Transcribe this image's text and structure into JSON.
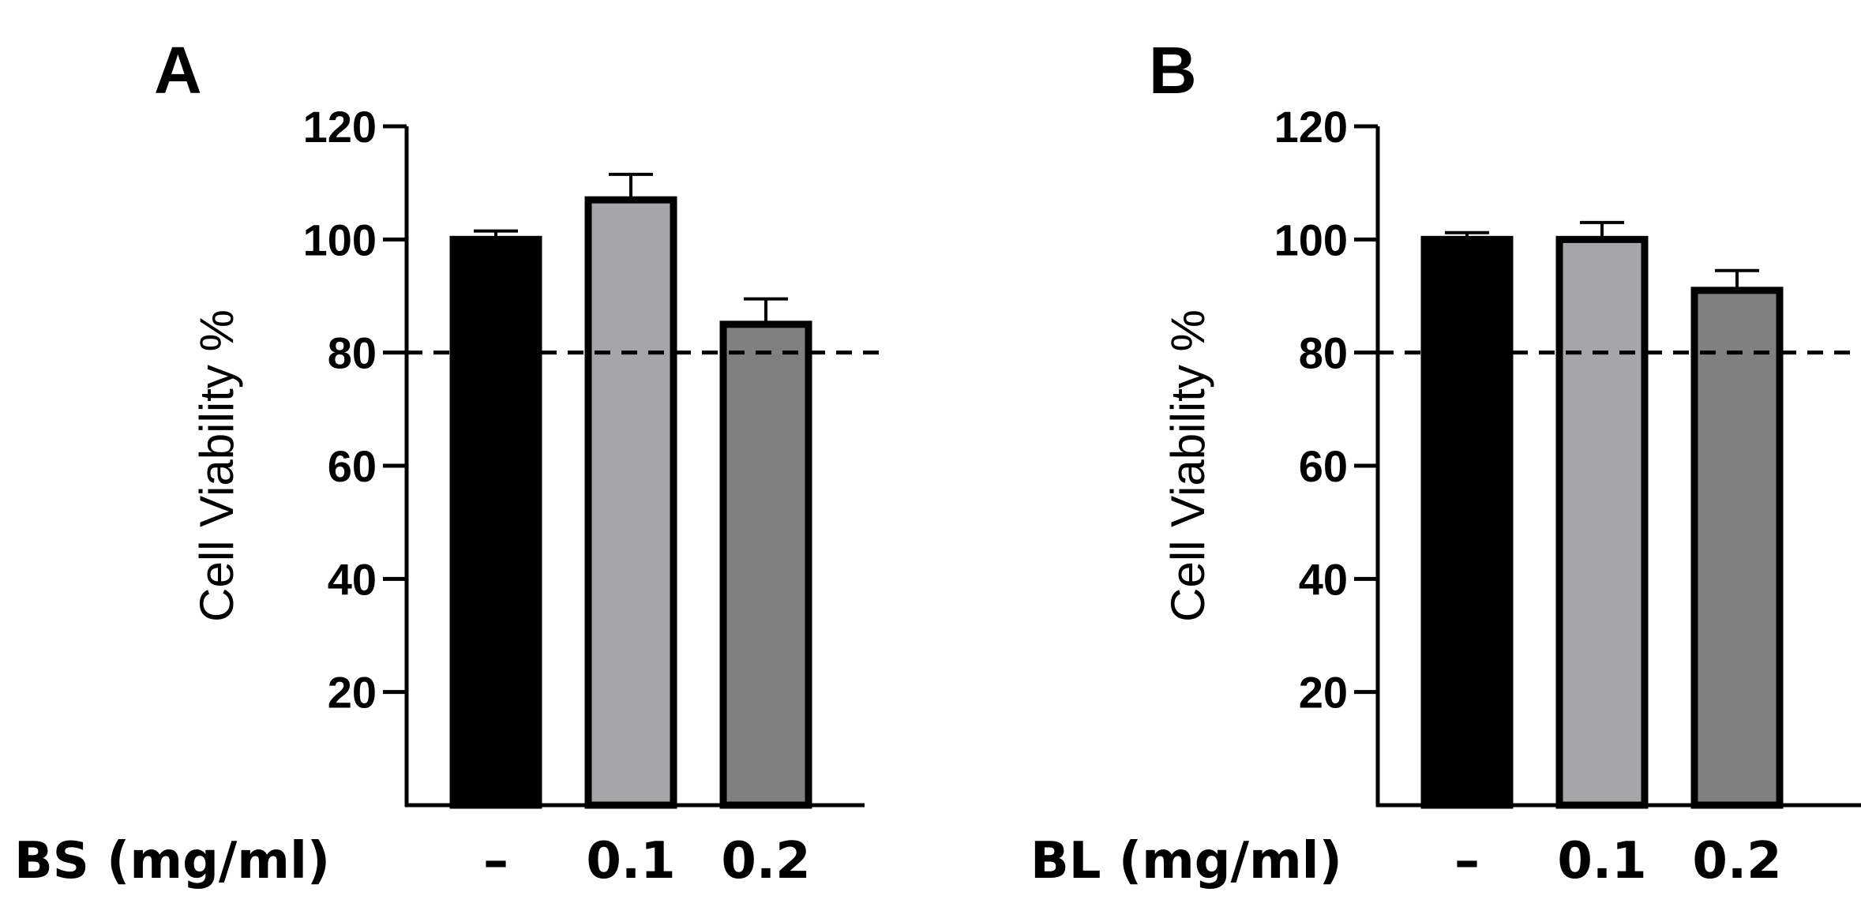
{
  "chart_data": [
    {
      "panel": "A",
      "type": "bar",
      "title": "",
      "xlabel": "BS (mg/ml)",
      "ylabel": "Cell Viability %",
      "categories": [
        "–",
        "0.1",
        "0.2"
      ],
      "values": [
        100,
        107,
        85
      ],
      "errors": [
        1.5,
        4.5,
        4.5
      ],
      "bar_colors": [
        "#000000",
        "#a5a5aa",
        "#808080"
      ],
      "ylim": [
        0,
        120
      ],
      "yticks": [
        20,
        40,
        60,
        80,
        100,
        120
      ],
      "reference_line": 80,
      "grid": false
    },
    {
      "panel": "B",
      "type": "bar",
      "title": "",
      "xlabel": "BL (mg/ml)",
      "ylabel": "Cell Viability %",
      "categories": [
        "–",
        "0.1",
        "0.2"
      ],
      "values": [
        100,
        100,
        91
      ],
      "errors": [
        1.2,
        3,
        3.5
      ],
      "bar_colors": [
        "#000000",
        "#a5a5aa",
        "#808080"
      ],
      "ylim": [
        0,
        120
      ],
      "yticks": [
        20,
        40,
        60,
        80,
        100,
        120
      ],
      "reference_line": 80,
      "grid": false
    }
  ]
}
